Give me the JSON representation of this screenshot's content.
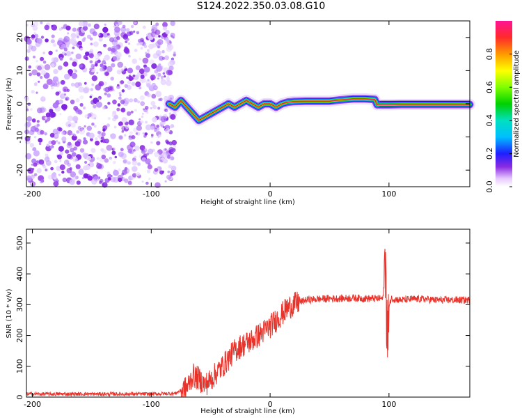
{
  "title": "S124.2022.350.03.08.G10",
  "colors": {
    "snr_line": "#e8322a",
    "scatter_purple": "#8a2be2",
    "track_core": "#e8203c"
  },
  "chart_data": [
    {
      "id": "spectrogram",
      "type": "heatmap",
      "title": "S124.2022.350.03.08.G10",
      "xlabel": "Height of straight line (km)",
      "ylabel": "Frequency (Hz)",
      "xlim": [
        -205,
        168
      ],
      "ylim": [
        -25,
        25
      ],
      "xticks": [
        -200,
        -100,
        0,
        100
      ],
      "yticks": [
        -20,
        -10,
        0,
        10,
        20
      ],
      "xtick_labels": [
        "-200",
        "-100",
        "0",
        "100"
      ],
      "ytick_labels": [
        "-20",
        "-10",
        "0",
        "10",
        "20"
      ],
      "noise_region_x": [
        -205,
        -80
      ],
      "frequency_track": {
        "x": [
          -85,
          -80,
          -75,
          -70,
          -65,
          -60,
          -55,
          -50,
          -45,
          -40,
          -35,
          -30,
          -25,
          -20,
          -15,
          -10,
          -5,
          0,
          5,
          10,
          15,
          20,
          30,
          40,
          50,
          60,
          70,
          80,
          88,
          90,
          92,
          100,
          110,
          120,
          130,
          140,
          150,
          160,
          168
        ],
        "y": [
          0,
          -1,
          1,
          -1,
          -3,
          -5,
          -4,
          -3,
          -2,
          -1,
          0,
          -1,
          0,
          1,
          0,
          -1,
          0,
          0,
          -1,
          0,
          0.5,
          0.7,
          0.8,
          0.8,
          0.8,
          1.2,
          1.5,
          1.5,
          1.3,
          -0.3,
          -0.3,
          -0.3,
          -0.2,
          -0.2,
          -0.2,
          -0.2,
          -0.2,
          -0.2,
          -0.2
        ]
      },
      "colorbar": {
        "label": "Normalized spectral amplitude",
        "range": [
          0.0,
          1.0
        ],
        "ticks": [
          0.0,
          0.2,
          0.4,
          0.6,
          0.8
        ],
        "tick_labels": [
          "0.0",
          "0.2",
          "0.4",
          "0.6",
          "0.8"
        ]
      },
      "grid": false
    },
    {
      "id": "snr",
      "type": "line",
      "xlabel": "Height of straight line (km)",
      "ylabel": "SNR (10 * v/v)",
      "xlim": [
        -205,
        168
      ],
      "ylim": [
        0,
        545
      ],
      "xticks": [
        -200,
        -100,
        0,
        100
      ],
      "yticks": [
        0,
        100,
        200,
        300,
        400,
        500
      ],
      "xtick_labels": [
        "-200",
        "-100",
        "0",
        "100"
      ],
      "ytick_labels": [
        "0",
        "100",
        "200",
        "300",
        "400",
        "500"
      ],
      "series": [
        {
          "x": [
            -205,
            -100,
            -80,
            -70,
            -65,
            -60,
            -55,
            -50,
            -45,
            -40,
            -35,
            -30,
            -25,
            -20,
            -15,
            -10,
            -5,
            0,
            5,
            10,
            15,
            20,
            25,
            30,
            40,
            50,
            60,
            70,
            80,
            90,
            95,
            97,
            98,
            99,
            100,
            102,
            110,
            120,
            130,
            140,
            150,
            160,
            168
          ],
          "y": [
            10,
            10,
            12,
            30,
            70,
            60,
            40,
            55,
            80,
            100,
            125,
            150,
            165,
            175,
            185,
            200,
            215,
            230,
            250,
            270,
            290,
            300,
            308,
            315,
            318,
            320,
            320,
            322,
            320,
            320,
            320,
            420,
            250,
            200,
            300,
            320,
            315,
            318,
            318,
            315,
            315,
            315,
            315
          ]
        }
      ],
      "grid": false
    }
  ]
}
